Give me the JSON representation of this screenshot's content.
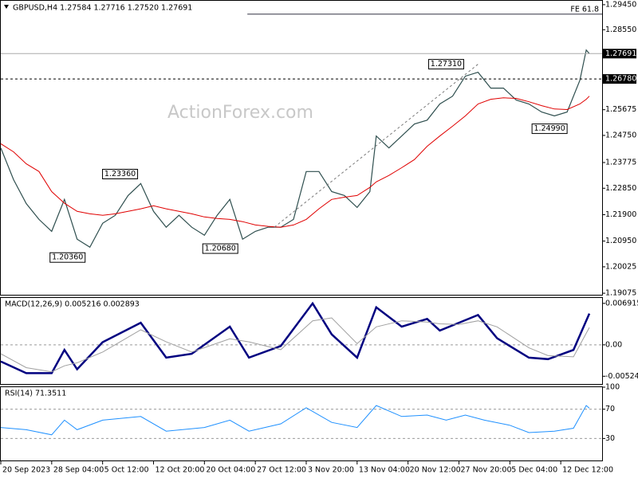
{
  "chart_data": [
    {
      "type": "line",
      "title": "GBPUSD,H4 1.27584 1.27716 1.27520 1.27691",
      "watermark": "ActionForex.com",
      "xlim": [
        0,
        378
      ],
      "xticks": [
        {
          "value": 0,
          "label": "20 Sep 2023"
        },
        {
          "value": 32,
          "label": "28 Sep 04:00"
        },
        {
          "value": 64,
          "label": "5 Oct 12:00"
        },
        {
          "value": 96,
          "label": "12 Oct 20:00"
        },
        {
          "value": 128,
          "label": "20 Oct 04:00"
        },
        {
          "value": 160,
          "label": "27 Oct 12:00"
        },
        {
          "value": 192,
          "label": "3 Nov 20:00"
        },
        {
          "value": 224,
          "label": "13 Nov 04:00"
        },
        {
          "value": 256,
          "label": "20 Nov 12:00"
        },
        {
          "value": 288,
          "label": "27 Nov 20:00"
        },
        {
          "value": 320,
          "label": "5 Dec 04:00"
        },
        {
          "value": 352,
          "label": "12 Dec 12:00"
        }
      ],
      "ylim": [
        1.1902,
        1.2959
      ],
      "yticks": [
        {
          "value": 1.2945,
          "label": "1.29450"
        },
        {
          "value": 1.2855,
          "label": "1.28550"
        },
        {
          "value": 1.25675,
          "label": "1.25675"
        },
        {
          "value": 1.2475,
          "label": "1.24750"
        },
        {
          "value": 1.23775,
          "label": "1.23775"
        },
        {
          "value": 1.2285,
          "label": "1.22850"
        },
        {
          "value": 1.219,
          "label": "1.21900"
        },
        {
          "value": 1.2095,
          "label": "1.20950"
        },
        {
          "value": 1.20025,
          "label": "1.20025"
        },
        {
          "value": 1.19075,
          "label": "1.19075"
        }
      ],
      "x": [
        0,
        8,
        16,
        24,
        32,
        40,
        48,
        56,
        64,
        72,
        80,
        88,
        96,
        104,
        112,
        120,
        128,
        136,
        144,
        152,
        160,
        168,
        176,
        184,
        192,
        200,
        208,
        216,
        224,
        232,
        236,
        244,
        252,
        260,
        268,
        276,
        284,
        292,
        300,
        308,
        316,
        324,
        332,
        340,
        348,
        356,
        364,
        368,
        370
      ],
      "series": [
        {
          "color": "#2f4f4f",
          "values": [
            1.243,
            1.2316,
            1.223,
            1.2173,
            1.213,
            1.2245,
            1.2102,
            1.2073,
            1.2159,
            1.2188,
            1.2259,
            1.2302,
            1.2202,
            1.2145,
            1.2188,
            1.2145,
            1.2116,
            1.2188,
            1.2245,
            1.2102,
            1.213,
            1.2145,
            1.2145,
            1.2173,
            1.2345,
            1.2345,
            1.2273,
            1.2259,
            1.2216,
            1.2273,
            1.2473,
            1.243,
            1.2473,
            1.2516,
            1.253,
            1.2588,
            1.2616,
            1.2688,
            1.2702,
            1.2645,
            1.2645,
            1.2602,
            1.2588,
            1.2559,
            1.2545,
            1.2559,
            1.2673,
            1.2782,
            1.2769
          ]
        },
        {
          "color": "#e00000",
          "values": [
            1.2445,
            1.2416,
            1.2373,
            1.2345,
            1.2273,
            1.2231,
            1.2202,
            1.2193,
            1.2188,
            1.2193,
            1.2202,
            1.2211,
            1.2222,
            1.2211,
            1.2202,
            1.2193,
            1.2182,
            1.2176,
            1.2173,
            1.2165,
            1.2153,
            1.2148,
            1.2145,
            1.2153,
            1.2173,
            1.2211,
            1.2245,
            1.2253,
            1.2259,
            1.2288,
            1.2308,
            1.2331,
            1.2359,
            1.2388,
            1.2436,
            1.2473,
            1.2508,
            1.2545,
            1.2588,
            1.2605,
            1.261,
            1.2608,
            1.2596,
            1.2582,
            1.257,
            1.2568,
            1.2588,
            1.2605,
            1.2616
          ]
        }
      ],
      "price_lines": [
        {
          "value": 1.27691,
          "label": "1.27691",
          "dashed": false
        },
        {
          "value": 1.2678,
          "label": "1.26780",
          "dashed": true
        }
      ],
      "fe_line": {
        "label": "FE 61.8",
        "value": 1.2911,
        "x_start": 155
      },
      "trendline": {
        "x": [
          172,
          300
        ],
        "y": [
          1.2145,
          1.2731
        ]
      },
      "annotations": [
        {
          "label": "1.23360",
          "value": 1.2336,
          "x": 86
        },
        {
          "label": "1.20360",
          "value": 1.2036,
          "x": 53
        },
        {
          "label": "1.20680",
          "value": 1.2068,
          "x": 149
        },
        {
          "label": "1.27310",
          "value": 1.2731,
          "x": 291
        },
        {
          "label": "1.24990",
          "value": 1.2499,
          "x": 356
        }
      ]
    },
    {
      "type": "line",
      "title": "MACD(12,26,9) 0.005216 0.002893",
      "ylim": [
        -0.00653,
        0.00782
      ],
      "yticks": [
        0.006915,
        {
          "value": 0,
          "label": "0.00"
        },
        -0.005241
      ],
      "levels": [
        0
      ],
      "x": [
        0,
        16,
        32,
        40,
        48,
        64,
        88,
        104,
        120,
        144,
        156,
        176,
        196,
        208,
        224,
        236,
        252,
        268,
        276,
        288,
        300,
        312,
        332,
        344,
        360,
        370
      ],
      "series": [
        {
          "color": "#000080",
          "values": [
            -0.00278,
            -0.00472,
            -0.00472,
            -0.00084,
            -0.00407,
            0.00045,
            0.00369,
            -0.00213,
            -0.00149,
            0.00304,
            -0.00213,
            -0.00019,
            0.00692,
            0.00175,
            -0.00213,
            0.00627,
            0.00304,
            0.00433,
            0.00239,
            0.00369,
            0.00498,
            0.0011,
            -0.00213,
            -0.00239,
            -0.00084,
            0.005216
          ]
        },
        {
          "color": "#a0a0a0",
          "values": [
            -0.0015,
            -0.0038,
            -0.0045,
            -0.0035,
            -0.003,
            -0.0012,
            0.0025,
            0.0005,
            -0.0012,
            0.001,
            0.0005,
            -0.0008,
            0.004,
            0.0045,
            0.0002,
            0.003,
            0.004,
            0.0038,
            0.0035,
            0.0034,
            0.004,
            0.003,
            -0.0005,
            -0.0018,
            -0.002,
            0.002893
          ]
        }
      ]
    },
    {
      "type": "line",
      "title": "RSI(14) 71.3511",
      "ylim": [
        0,
        100
      ],
      "yticks": [
        100,
        70,
        30
      ],
      "levels": [
        70,
        30
      ],
      "x": [
        0,
        16,
        32,
        40,
        48,
        64,
        88,
        104,
        128,
        144,
        156,
        176,
        192,
        208,
        224,
        236,
        252,
        268,
        280,
        292,
        304,
        320,
        332,
        348,
        360,
        368,
        370
      ],
      "series": [
        {
          "color": "#1e90ff",
          "values": [
            45,
            42,
            35,
            55,
            42,
            55,
            60,
            40,
            45,
            55,
            40,
            50,
            72,
            52,
            45,
            75,
            60,
            62,
            55,
            62,
            55,
            48,
            38,
            40,
            44,
            75,
            71.3511
          ]
        }
      ]
    }
  ]
}
